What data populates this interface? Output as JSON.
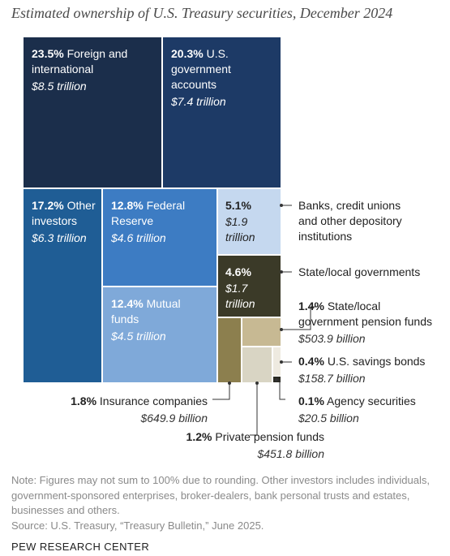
{
  "chart_data": {
    "type": "treemap",
    "title": "Estimated ownership of U.S. Treasury securities, December 2024",
    "segments": [
      {
        "key": "foreign",
        "pct": "23.5%",
        "name": "Foreign and international",
        "value_text": "$8.5 trillion",
        "pct_value": 23.5,
        "value_trillion": 8.5,
        "color": "#1b2e4b"
      },
      {
        "key": "govacct",
        "pct": "20.3%",
        "name": "U.S. government accounts",
        "value_text": "$7.4 trillion",
        "pct_value": 20.3,
        "value_trillion": 7.4,
        "color": "#1d3a66"
      },
      {
        "key": "other",
        "pct": "17.2%",
        "name": "Other investors",
        "value_text": "$6.3 trillion",
        "pct_value": 17.2,
        "value_trillion": 6.3,
        "color": "#1f5d95"
      },
      {
        "key": "fed",
        "pct": "12.8%",
        "name": "Federal Reserve",
        "value_text": "$4.6 trillion",
        "pct_value": 12.8,
        "value_trillion": 4.6,
        "color": "#3d7cc3"
      },
      {
        "key": "mutual",
        "pct": "12.4%",
        "name": "Mutual funds",
        "value_text": "$4.5 trillion",
        "pct_value": 12.4,
        "value_trillion": 4.5,
        "color": "#7fa9d9"
      },
      {
        "key": "banks",
        "pct": "5.1%",
        "name": "Banks, credit unions and other depository institutions",
        "value_text": "$1.9 trillion",
        "pct_value": 5.1,
        "value_trillion": 1.9,
        "color": "#c5d8ef"
      },
      {
        "key": "statelocal",
        "pct": "4.6%",
        "name": "State/local governments",
        "value_text": "$1.7 trillion",
        "pct_value": 4.6,
        "value_trillion": 1.7,
        "color": "#3b3a28"
      },
      {
        "key": "statepension",
        "pct": "1.4%",
        "name": "State/local government pension funds",
        "value_text": "$503.9 billion",
        "pct_value": 1.4,
        "value_billion": 503.9,
        "color": "#c7b993"
      },
      {
        "key": "insurance",
        "pct": "1.8%",
        "name": "Insurance companies",
        "value_text": "$649.9 billion",
        "pct_value": 1.8,
        "value_billion": 649.9,
        "color": "#8c7f4e"
      },
      {
        "key": "privpension",
        "pct": "1.2%",
        "name": "Private pension funds",
        "value_text": "$451.8 billion",
        "pct_value": 1.2,
        "value_billion": 451.8,
        "color": "#d9d5c4"
      },
      {
        "key": "savings",
        "pct": "0.4%",
        "name": "U.S. savings bonds",
        "value_text": "$158.7 billion",
        "pct_value": 0.4,
        "value_billion": 158.7,
        "color": "#eeeae0"
      },
      {
        "key": "agency",
        "pct": "0.1%",
        "name": "Agency securities",
        "value_text": "$20.5 billion",
        "pct_value": 0.1,
        "value_billion": 20.5,
        "color": "#2a2a22"
      }
    ],
    "callouts": {
      "banks_lines": [
        "Banks, credit unions",
        "and other depository",
        "institutions"
      ],
      "statepension_lines": [
        "State/local",
        "government pension funds"
      ]
    },
    "tile_text": {
      "foreign_lines": [
        "Foreign and",
        "international"
      ],
      "govacct_lines": [
        "U.S.",
        "government",
        "accounts"
      ],
      "other_lines": [
        "Other",
        "investors"
      ],
      "fed_lines": [
        "Federal",
        "Reserve"
      ],
      "mutual_lines": [
        "Mutual",
        "funds"
      ],
      "banks_val_lines": [
        "$1.9",
        "trillion"
      ],
      "statelocal_val_lines": [
        "$1.7",
        "trillion"
      ]
    }
  },
  "note": "Note: Figures may not sum to 100% due to rounding. Other investors includes individuals, government-sponsored enterprises, broker-dealers, bank personal trusts and estates, businesses and others.",
  "source": "Source: U.S. Treasury, “Treasury Bulletin,” June 2025.",
  "brand": "PEW RESEARCH CENTER"
}
